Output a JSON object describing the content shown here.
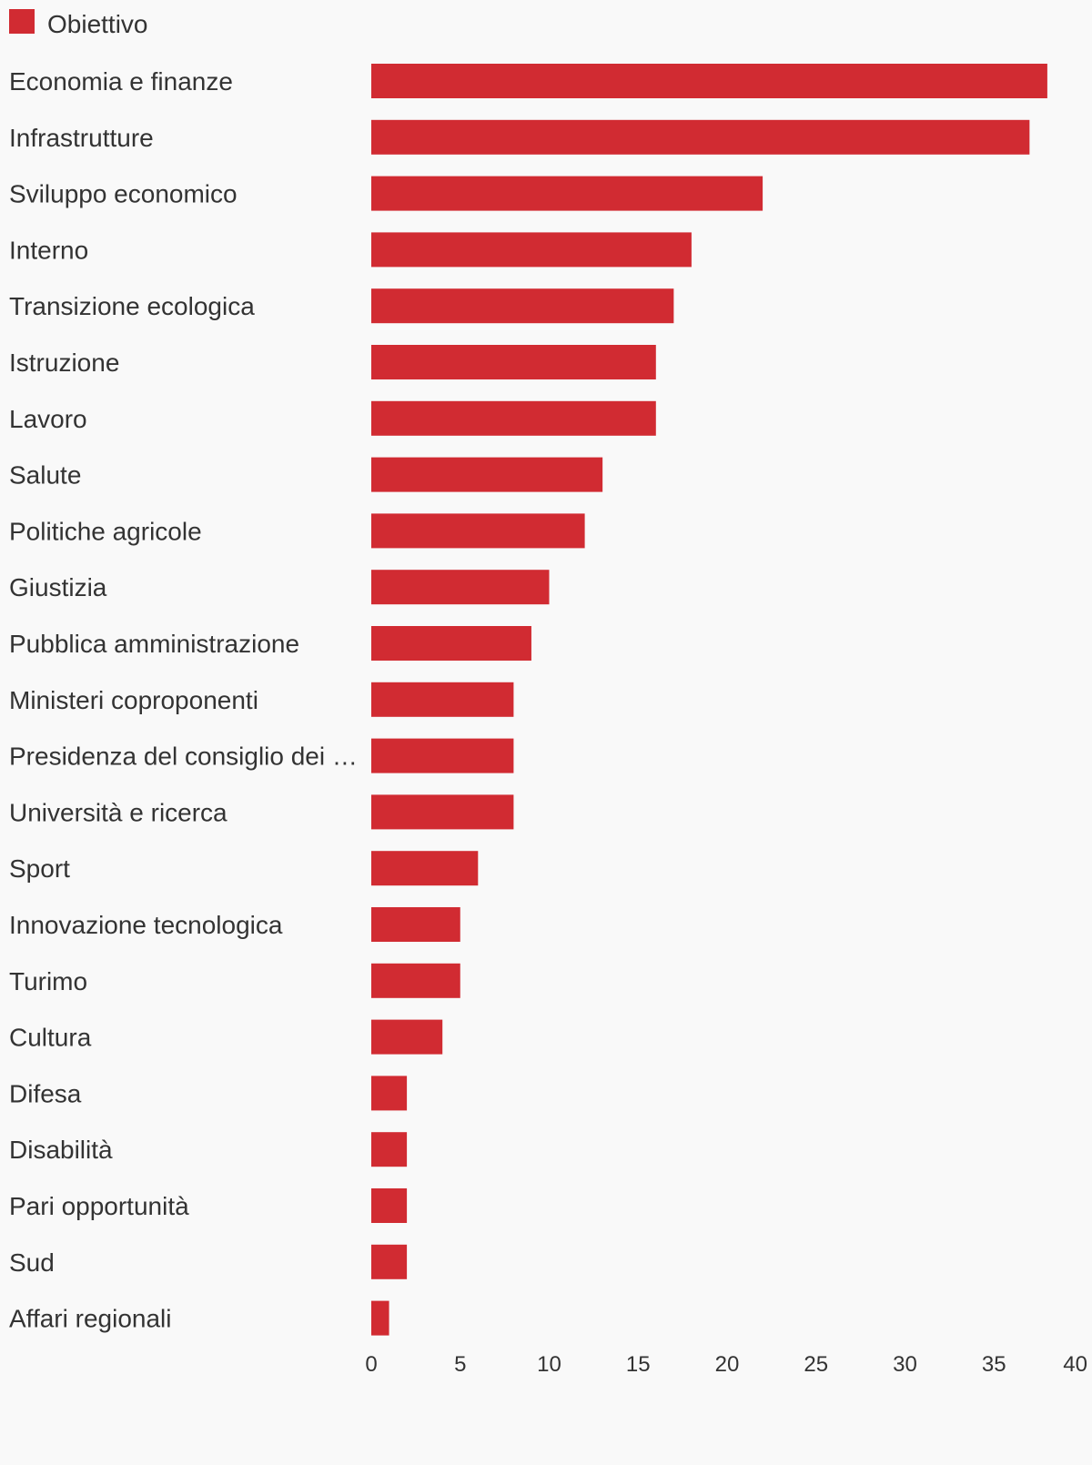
{
  "chart_data": {
    "type": "bar",
    "orientation": "horizontal",
    "series": [
      {
        "name": "Obiettivo",
        "color": "#d12b32",
        "values": [
          38,
          37,
          22,
          18,
          17,
          16,
          16,
          13,
          12,
          10,
          9,
          8,
          8,
          8,
          6,
          5,
          5,
          4,
          2,
          2,
          2,
          2,
          1
        ]
      }
    ],
    "categories": [
      "Economia e finanze",
      "Infrastrutture",
      "Sviluppo economico",
      "Interno",
      "Transizione ecologica",
      "Istruzione",
      "Lavoro",
      "Salute",
      "Politiche agricole",
      "Giustizia",
      "Pubblica amministrazione",
      "Ministeri coproponenti",
      "Presidenza del consiglio dei …",
      "Università e ricerca",
      "Sport",
      "Innovazione tecnologica",
      "Turimo",
      "Cultura",
      "Difesa",
      "Disabilità",
      "Pari opportunità",
      "Sud",
      "Affari regionali"
    ],
    "xlim": [
      0,
      40
    ],
    "xticks": [
      0,
      5,
      10,
      15,
      20,
      25,
      30,
      35,
      40
    ],
    "grid": false,
    "legend_position": "top-left"
  }
}
